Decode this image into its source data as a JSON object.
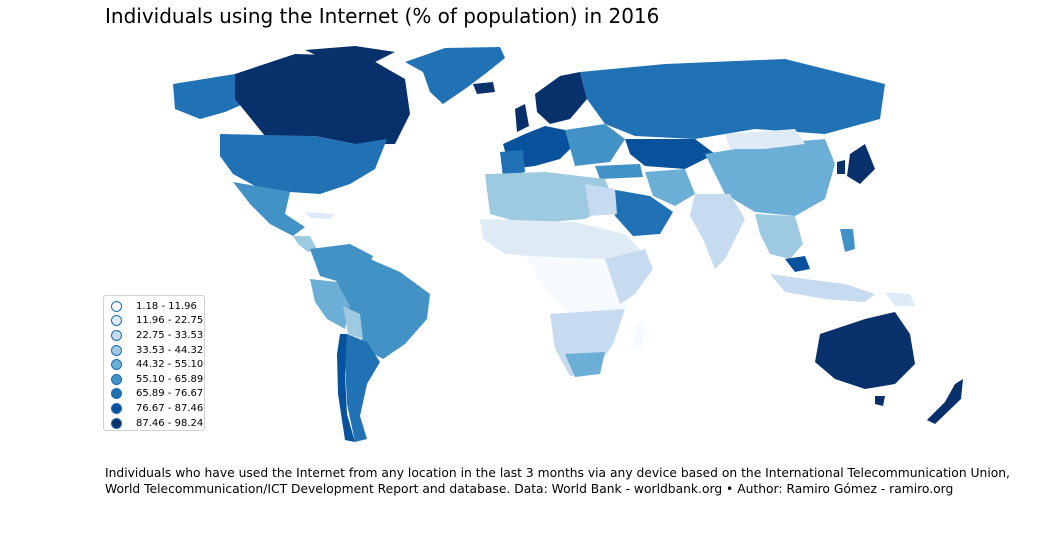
{
  "title": "Individuals using the Internet (% of population) in 2016",
  "legend": {
    "items": [
      {
        "label": "1.18 - 11.96",
        "color": "#f7fbff"
      },
      {
        "label": "11.96 - 22.75",
        "color": "#deebf7"
      },
      {
        "label": "22.75 - 33.53",
        "color": "#c6dbef"
      },
      {
        "label": "33.53 - 44.32",
        "color": "#9ecae1"
      },
      {
        "label": "44.32 - 55.10",
        "color": "#6baed6"
      },
      {
        "label": "55.10 - 65.89",
        "color": "#4292c6"
      },
      {
        "label": "65.89 - 76.67",
        "color": "#2171b5"
      },
      {
        "label": "76.67 - 87.46",
        "color": "#08519c"
      },
      {
        "label": "87.46 - 98.24",
        "color": "#08306b"
      }
    ]
  },
  "caption": {
    "line1": "Individuals who have used the Internet from any location in the last 3 months via any device based on the International Telecommunication Union,",
    "line2": "World Telecommunication/ICT Development Report and database. Data: World Bank - worldbank.org • Author: Ramiro Gómez - ramiro.org"
  }
}
